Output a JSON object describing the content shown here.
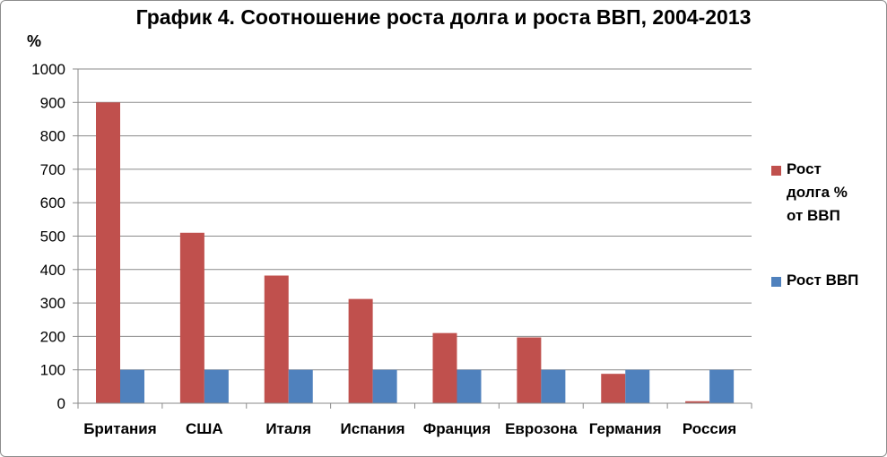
{
  "chart_data": {
    "type": "bar",
    "title": "График 4. Соотношение роста долга и роста ВВП, 2004-2013",
    "ylabel": "%",
    "xlabel": "",
    "ylim": [
      0,
      1000
    ],
    "yticks": [
      0,
      100,
      200,
      300,
      400,
      500,
      600,
      700,
      800,
      900,
      1000
    ],
    "grid": true,
    "legend_position": "right",
    "categories": [
      "Британия",
      "США",
      "Италя",
      "Испания",
      "Франция",
      "Еврозона",
      "Германия",
      "Россия"
    ],
    "series": [
      {
        "name": "Рост долга % от ВВП",
        "color": "#c0504d",
        "values": [
          900,
          510,
          382,
          312,
          210,
          197,
          88,
          6
        ]
      },
      {
        "name": "Рост ВВП",
        "color": "#4f81bd",
        "values": [
          100,
          100,
          100,
          100,
          100,
          100,
          100,
          100
        ]
      }
    ]
  }
}
